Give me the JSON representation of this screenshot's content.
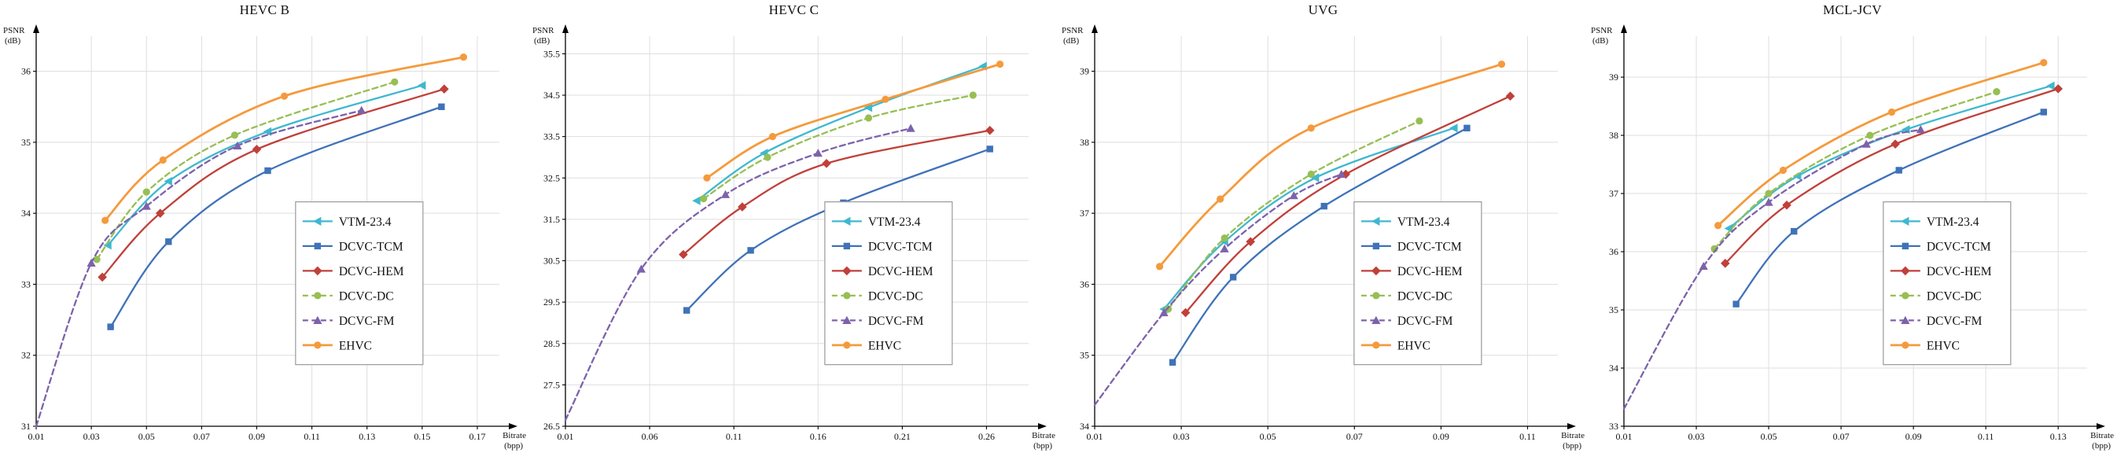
{
  "page": {
    "background": "#ffffff"
  },
  "legend": {
    "entries": [
      "VTM-23.4",
      "DCVC-TCM",
      "DCVC-HEM",
      "DCVC-DC",
      "DCVC-FM",
      "EHVC"
    ]
  },
  "chart_data": [
    {
      "type": "line",
      "title": "HEVC B",
      "xlabel": "Bitrate (bpp)",
      "ylabel": "PSNR (dB)",
      "xlabel_lines": [
        "Bitrate",
        "(bpp)"
      ],
      "ylabel_lines": [
        "PSNR",
        "(dB)"
      ],
      "xlim": [
        0.01,
        0.178
      ],
      "ylim": [
        31,
        36.45
      ],
      "xticks": [
        0.01,
        0.03,
        0.05,
        0.07,
        0.09,
        0.11,
        0.13,
        0.15,
        0.17
      ],
      "xtick_labels": [
        "0.01",
        "0.03",
        "0.05",
        "0.07",
        "0.09",
        "0.11",
        "0.13",
        "0.15",
        "0.17"
      ],
      "yticks": [
        31,
        32,
        33,
        34,
        35,
        36
      ],
      "ytick_labels": [
        "31",
        "32",
        "33",
        "34",
        "35",
        "36"
      ],
      "grid": true,
      "legend_position": "lower right",
      "series": [
        {
          "name": "VTM-23.4",
          "color": "#3fb8cf",
          "dash": false,
          "marker": "triangle-left",
          "points": [
            [
              0.036,
              33.55
            ],
            [
              0.058,
              34.45
            ],
            [
              0.094,
              35.15
            ],
            [
              0.15,
              35.8
            ]
          ]
        },
        {
          "name": "DCVC-TCM",
          "color": "#3f72b8",
          "dash": false,
          "marker": "square",
          "points": [
            [
              0.037,
              32.4
            ],
            [
              0.058,
              33.6
            ],
            [
              0.094,
              34.6
            ],
            [
              0.157,
              35.5
            ]
          ]
        },
        {
          "name": "DCVC-HEM",
          "color": "#c0403a",
          "dash": false,
          "marker": "diamond",
          "points": [
            [
              0.034,
              33.1
            ],
            [
              0.055,
              34.0
            ],
            [
              0.09,
              34.9
            ],
            [
              0.158,
              35.75
            ]
          ]
        },
        {
          "name": "DCVC-DC",
          "color": "#97bf54",
          "dash": true,
          "marker": "circle",
          "points": [
            [
              0.032,
              33.35
            ],
            [
              0.05,
              34.3
            ],
            [
              0.082,
              35.1
            ],
            [
              0.14,
              35.85
            ]
          ]
        },
        {
          "name": "DCVC-FM",
          "color": "#7d62ab",
          "dash": true,
          "marker": "triangle-up",
          "markers_from": 1,
          "points": [
            [
              0.01,
              31.0
            ],
            [
              0.03,
              33.3
            ],
            [
              0.05,
              34.1
            ],
            [
              0.083,
              34.95
            ],
            [
              0.128,
              35.45
            ]
          ]
        },
        {
          "name": "EHVC",
          "color": "#f59a3c",
          "dash": false,
          "marker": "circle",
          "width": 2.8,
          "points": [
            [
              0.035,
              33.9
            ],
            [
              0.056,
              34.75
            ],
            [
              0.1,
              35.65
            ],
            [
              0.165,
              36.2
            ]
          ]
        }
      ]
    },
    {
      "type": "line",
      "title": "HEVC C",
      "xlabel": "Bitrate (bpp)",
      "ylabel": "PSNR (dB)",
      "xlabel_lines": [
        "Bitrate",
        "(bpp)"
      ],
      "ylabel_lines": [
        "PSNR",
        "(dB)"
      ],
      "xlim": [
        0.01,
        0.285
      ],
      "ylim": [
        26.5,
        35.85
      ],
      "xticks": [
        0.01,
        0.06,
        0.11,
        0.16,
        0.21,
        0.26
      ],
      "xtick_labels": [
        "0.01",
        "0.06",
        "0.11",
        "0.16",
        "0.21",
        "0.26"
      ],
      "yticks": [
        26.5,
        27.5,
        28.5,
        29.5,
        30.5,
        31.5,
        32.5,
        33.5,
        34.5,
        35.5
      ],
      "ytick_labels": [
        "26.5",
        "27.5",
        "28.5",
        "29.5",
        "30.5",
        "31.5",
        "32.5",
        "33.5",
        "34.5",
        "35.5"
      ],
      "grid": true,
      "legend_position": "lower right",
      "series": [
        {
          "name": "VTM-23.4",
          "color": "#3fb8cf",
          "dash": false,
          "marker": "triangle-left",
          "points": [
            [
              0.088,
              31.95
            ],
            [
              0.128,
              33.1
            ],
            [
              0.19,
              34.2
            ],
            [
              0.258,
              35.2
            ]
          ]
        },
        {
          "name": "DCVC-TCM",
          "color": "#3f72b8",
          "dash": false,
          "marker": "square",
          "points": [
            [
              0.082,
              29.3
            ],
            [
              0.12,
              30.75
            ],
            [
              0.175,
              31.9
            ],
            [
              0.262,
              33.2
            ]
          ]
        },
        {
          "name": "DCVC-HEM",
          "color": "#c0403a",
          "dash": false,
          "marker": "diamond",
          "points": [
            [
              0.08,
              30.65
            ],
            [
              0.115,
              31.8
            ],
            [
              0.165,
              32.85
            ],
            [
              0.262,
              33.65
            ]
          ]
        },
        {
          "name": "DCVC-DC",
          "color": "#97bf54",
          "dash": true,
          "marker": "circle",
          "points": [
            [
              0.092,
              32.0
            ],
            [
              0.13,
              33.0
            ],
            [
              0.19,
              33.95
            ],
            [
              0.252,
              34.5
            ]
          ]
        },
        {
          "name": "DCVC-FM",
          "color": "#7d62ab",
          "dash": true,
          "marker": "triangle-up",
          "markers_from": 1,
          "points": [
            [
              0.01,
              26.65
            ],
            [
              0.055,
              30.3
            ],
            [
              0.105,
              32.1
            ],
            [
              0.16,
              33.1
            ],
            [
              0.215,
              33.7
            ]
          ]
        },
        {
          "name": "EHVC",
          "color": "#f59a3c",
          "dash": false,
          "marker": "circle",
          "width": 2.8,
          "points": [
            [
              0.094,
              32.5
            ],
            [
              0.133,
              33.5
            ],
            [
              0.2,
              34.4
            ],
            [
              0.268,
              35.25
            ]
          ]
        }
      ]
    },
    {
      "type": "line",
      "title": "UVG",
      "xlabel": "Bitrate (bpp)",
      "ylabel": "PSNR (dB)",
      "xlabel_lines": [
        "Bitrate",
        "(bpp)"
      ],
      "ylabel_lines": [
        "PSNR",
        "(dB)"
      ],
      "xlim": [
        0.01,
        0.117
      ],
      "ylim": [
        34,
        39.45
      ],
      "xticks": [
        0.01,
        0.03,
        0.05,
        0.07,
        0.09,
        0.11
      ],
      "xtick_labels": [
        "0.01",
        "0.03",
        "0.05",
        "0.07",
        "0.09",
        "0.11"
      ],
      "yticks": [
        34,
        35,
        36,
        37,
        38,
        39
      ],
      "ytick_labels": [
        "34",
        "35",
        "36",
        "37",
        "38",
        "39"
      ],
      "grid": true,
      "legend_position": "lower right",
      "series": [
        {
          "name": "VTM-23.4",
          "color": "#3fb8cf",
          "dash": false,
          "marker": "triangle-left",
          "points": [
            [
              0.026,
              35.65
            ],
            [
              0.04,
              36.6
            ],
            [
              0.061,
              37.5
            ],
            [
              0.093,
              38.2
            ]
          ]
        },
        {
          "name": "DCVC-TCM",
          "color": "#3f72b8",
          "dash": false,
          "marker": "square",
          "points": [
            [
              0.028,
              34.9
            ],
            [
              0.042,
              36.1
            ],
            [
              0.063,
              37.1
            ],
            [
              0.096,
              38.2
            ]
          ]
        },
        {
          "name": "DCVC-HEM",
          "color": "#c0403a",
          "dash": false,
          "marker": "diamond",
          "points": [
            [
              0.031,
              35.6
            ],
            [
              0.046,
              36.6
            ],
            [
              0.068,
              37.55
            ],
            [
              0.106,
              38.65
            ]
          ]
        },
        {
          "name": "DCVC-DC",
          "color": "#97bf54",
          "dash": true,
          "marker": "circle",
          "points": [
            [
              0.027,
              35.65
            ],
            [
              0.04,
              36.65
            ],
            [
              0.06,
              37.55
            ],
            [
              0.085,
              38.3
            ]
          ]
        },
        {
          "name": "DCVC-FM",
          "color": "#7d62ab",
          "dash": true,
          "marker": "triangle-up",
          "markers_from": 1,
          "points": [
            [
              0.01,
              34.3
            ],
            [
              0.026,
              35.6
            ],
            [
              0.04,
              36.5
            ],
            [
              0.056,
              37.25
            ],
            [
              0.067,
              37.55
            ]
          ]
        },
        {
          "name": "EHVC",
          "color": "#f59a3c",
          "dash": false,
          "marker": "circle",
          "width": 2.8,
          "points": [
            [
              0.025,
              36.25
            ],
            [
              0.039,
              37.2
            ],
            [
              0.06,
              38.2
            ],
            [
              0.104,
              39.1
            ]
          ]
        }
      ]
    },
    {
      "type": "line",
      "title": "MCL-JCV",
      "xlabel": "Bitrate (bpp)",
      "ylabel": "PSNR (dB)",
      "xlabel_lines": [
        "Bitrate",
        "(bpp)"
      ],
      "ylabel_lines": [
        "PSNR",
        "(dB)"
      ],
      "xlim": [
        0.01,
        0.138
      ],
      "ylim": [
        33,
        39.65
      ],
      "xticks": [
        0.01,
        0.03,
        0.05,
        0.07,
        0.09,
        0.11,
        0.13
      ],
      "xtick_labels": [
        "0.01",
        "0.03",
        "0.05",
        "0.07",
        "0.09",
        "0.11",
        "0.13"
      ],
      "yticks": [
        33,
        34,
        35,
        36,
        37,
        38,
        39
      ],
      "ytick_labels": [
        "33",
        "34",
        "35",
        "36",
        "37",
        "38",
        "39"
      ],
      "grid": true,
      "legend_position": "lower right",
      "series": [
        {
          "name": "VTM-23.4",
          "color": "#3fb8cf",
          "dash": false,
          "marker": "triangle-left",
          "points": [
            [
              0.039,
              36.4
            ],
            [
              0.058,
              37.3
            ],
            [
              0.088,
              38.1
            ],
            [
              0.128,
              38.85
            ]
          ]
        },
        {
          "name": "DCVC-TCM",
          "color": "#3f72b8",
          "dash": false,
          "marker": "square",
          "points": [
            [
              0.041,
              35.1
            ],
            [
              0.057,
              36.35
            ],
            [
              0.086,
              37.4
            ],
            [
              0.126,
              38.4
            ]
          ]
        },
        {
          "name": "DCVC-HEM",
          "color": "#c0403a",
          "dash": false,
          "marker": "diamond",
          "points": [
            [
              0.038,
              35.8
            ],
            [
              0.055,
              36.8
            ],
            [
              0.085,
              37.85
            ],
            [
              0.13,
              38.8
            ]
          ]
        },
        {
          "name": "DCVC-DC",
          "color": "#97bf54",
          "dash": true,
          "marker": "circle",
          "points": [
            [
              0.035,
              36.05
            ],
            [
              0.05,
              37.0
            ],
            [
              0.078,
              38.0
            ],
            [
              0.113,
              38.75
            ]
          ]
        },
        {
          "name": "DCVC-FM",
          "color": "#7d62ab",
          "dash": true,
          "marker": "triangle-up",
          "markers_from": 1,
          "points": [
            [
              0.01,
              33.3
            ],
            [
              0.032,
              35.75
            ],
            [
              0.05,
              36.85
            ],
            [
              0.077,
              37.85
            ],
            [
              0.092,
              38.1
            ]
          ]
        },
        {
          "name": "EHVC",
          "color": "#f59a3c",
          "dash": false,
          "marker": "circle",
          "width": 2.8,
          "points": [
            [
              0.036,
              36.45
            ],
            [
              0.054,
              37.4
            ],
            [
              0.084,
              38.4
            ],
            [
              0.126,
              39.25
            ]
          ]
        }
      ]
    }
  ]
}
